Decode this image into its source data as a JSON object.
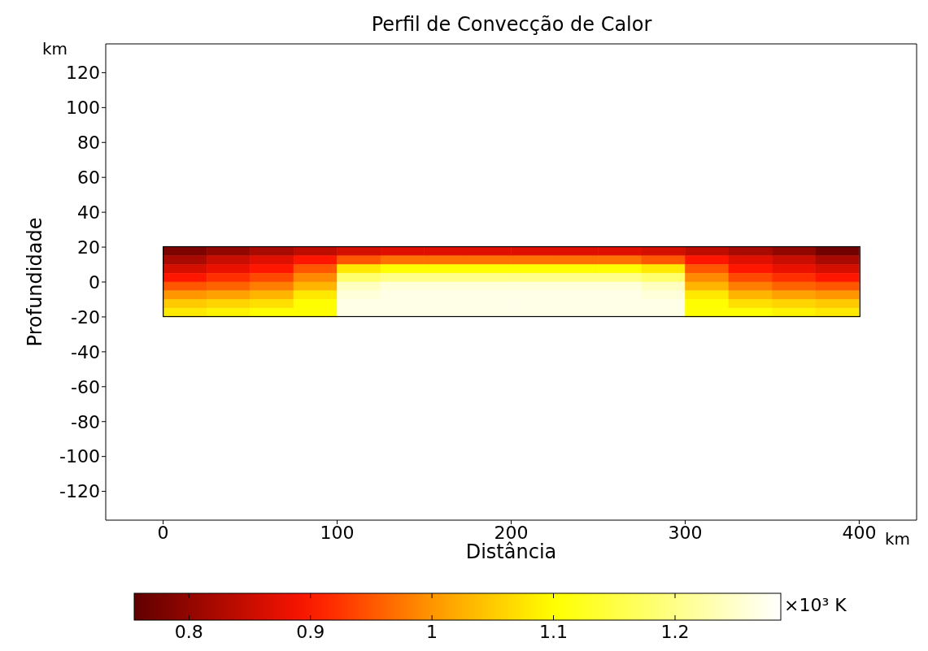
{
  "chart_data": {
    "type": "heatmap",
    "title": "Perfil de Convecção de Calor",
    "xlabel": "Distância",
    "ylabel": "Profundidade",
    "clabel": "×10³ K",
    "annotations": [
      "km",
      "km"
    ],
    "x": [
      12.5,
      37.5,
      62.5,
      87.5,
      112.5,
      137.5,
      162.5,
      187.5,
      212.5,
      237.5,
      262.5,
      287.5,
      312.5,
      337.5,
      362.5,
      387.5
    ],
    "y": [
      17.5,
      12.5,
      7.5,
      2.5,
      -2.5,
      -7.5,
      -12.5,
      -17.5
    ],
    "cells": [
      [
        0.78,
        0.8,
        0.82,
        0.84,
        0.86,
        0.87,
        0.87,
        0.87,
        0.87,
        0.87,
        0.87,
        0.86,
        0.84,
        0.82,
        0.8,
        0.77
      ],
      [
        0.82,
        0.85,
        0.87,
        0.9,
        0.95,
        0.97,
        0.97,
        0.97,
        0.97,
        0.97,
        0.97,
        0.95,
        0.9,
        0.87,
        0.85,
        0.82
      ],
      [
        0.86,
        0.88,
        0.9,
        0.95,
        1.08,
        1.1,
        1.1,
        1.1,
        1.1,
        1.1,
        1.1,
        1.08,
        0.95,
        0.9,
        0.88,
        0.86
      ],
      [
        0.9,
        0.92,
        0.94,
        0.99,
        1.18,
        1.2,
        1.2,
        1.2,
        1.2,
        1.2,
        1.2,
        1.18,
        0.99,
        0.94,
        0.92,
        0.9
      ],
      [
        0.95,
        0.96,
        0.98,
        1.03,
        1.24,
        1.26,
        1.26,
        1.26,
        1.26,
        1.26,
        1.26,
        1.24,
        1.03,
        0.98,
        0.96,
        0.95
      ],
      [
        1.0,
        1.01,
        1.03,
        1.08,
        1.26,
        1.27,
        1.27,
        1.27,
        1.27,
        1.27,
        1.27,
        1.26,
        1.08,
        1.03,
        1.01,
        1.0
      ],
      [
        1.05,
        1.06,
        1.07,
        1.1,
        1.27,
        1.27,
        1.27,
        1.27,
        1.27,
        1.27,
        1.27,
        1.27,
        1.1,
        1.07,
        1.06,
        1.05
      ],
      [
        1.08,
        1.09,
        1.1,
        1.1,
        1.27,
        1.27,
        1.27,
        1.27,
        1.27,
        1.27,
        1.27,
        1.27,
        1.1,
        1.1,
        1.09,
        1.08
      ]
    ],
    "xlim": [
      -33,
      433
    ],
    "xticks": [
      0,
      100,
      200,
      300,
      400
    ],
    "ylim": [
      -136.5,
      136.5
    ],
    "yticks": [
      -120,
      -100,
      -80,
      -60,
      -40,
      -20,
      0,
      20,
      40,
      60,
      80,
      100,
      120
    ],
    "clim": [
      0.755,
      1.287
    ],
    "cticks": [
      0.8,
      0.9,
      1,
      1.1,
      1.2
    ]
  }
}
